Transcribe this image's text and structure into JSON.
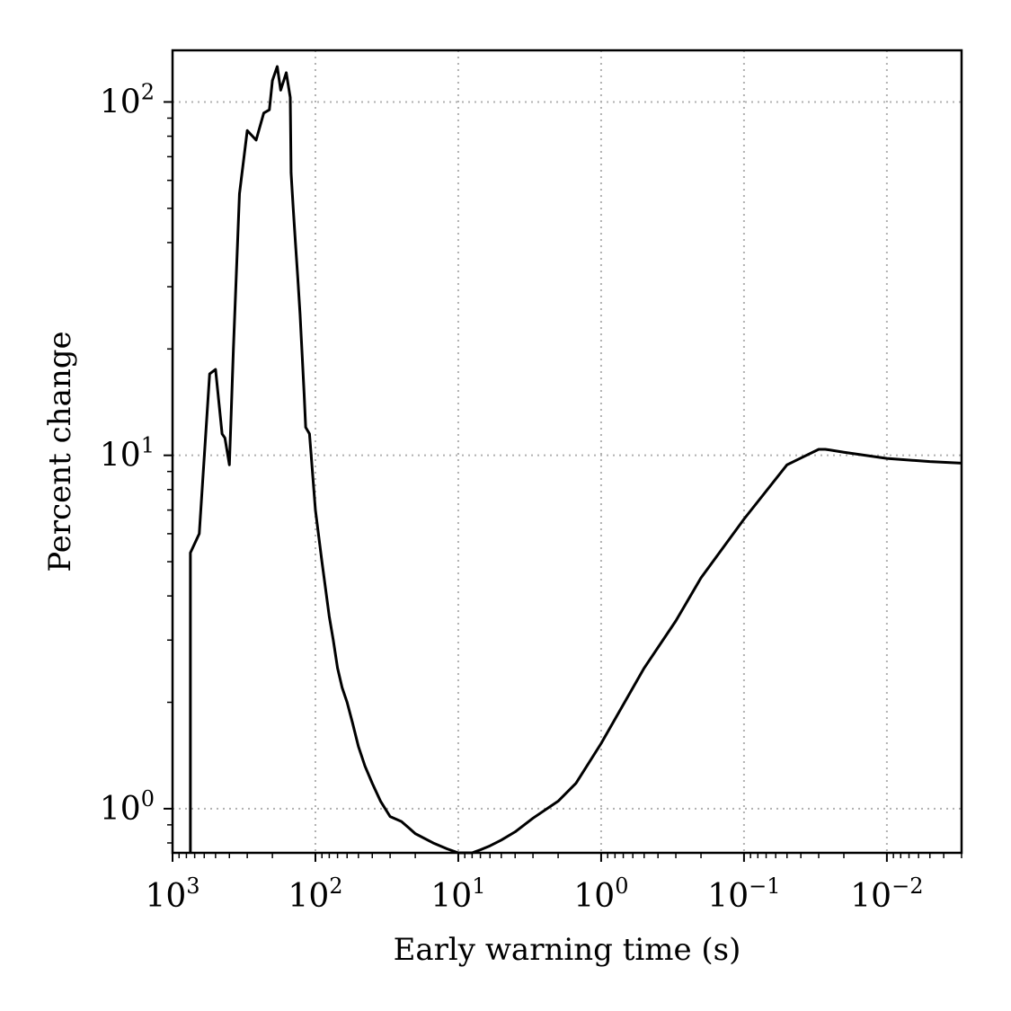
{
  "chart_data": {
    "type": "line",
    "title": "",
    "xlabel": "Early warning time (s)",
    "ylabel": "Percent change",
    "x_scale": "log",
    "y_scale": "log",
    "x_reversed": true,
    "xlim": [
      1000,
      0.003
    ],
    "ylim": [
      0.75,
      140
    ],
    "grid": true,
    "legend": "none",
    "line_color": "#000000",
    "grid_color": "#b0b0b0",
    "x_ticks": [
      {
        "value": 1000,
        "base": "10",
        "exp": "3"
      },
      {
        "value": 100,
        "base": "10",
        "exp": "2"
      },
      {
        "value": 10,
        "base": "10",
        "exp": "1"
      },
      {
        "value": 1,
        "base": "10",
        "exp": "0"
      },
      {
        "value": 0.1,
        "base": "10",
        "exp": "−1"
      },
      {
        "value": 0.01,
        "base": "10",
        "exp": "−2"
      }
    ],
    "y_ticks": [
      {
        "value": 1,
        "base": "10",
        "exp": "0"
      },
      {
        "value": 10,
        "base": "10",
        "exp": "1"
      },
      {
        "value": 100,
        "base": "10",
        "exp": "2"
      }
    ],
    "series": [
      {
        "x": [
          750,
          750,
          650,
          550,
          500,
          450,
          430,
          400,
          375,
          340,
          300,
          260,
          230,
          210,
          200,
          185,
          175,
          160,
          150,
          148,
          143,
          138,
          133,
          128,
          120,
          117,
          110,
          100,
          90,
          80,
          75,
          70,
          65,
          60,
          55,
          50,
          45,
          40,
          35,
          30,
          25,
          22,
          20,
          15,
          12,
          10,
          9,
          8,
          7,
          6,
          5,
          4,
          3,
          2,
          1.5,
          1,
          0.5,
          0.3,
          0.2,
          0.1,
          0.05,
          0.03,
          0.027,
          0.025,
          0.02,
          0.01,
          0.005,
          0.003
        ],
        "y": [
          0.75,
          5.3,
          6.0,
          17.0,
          17.5,
          11.5,
          11.2,
          9.4,
          20.0,
          55.0,
          83.0,
          78.0,
          93.0,
          95.0,
          115.0,
          126.0,
          108.0,
          121.0,
          103.0,
          63.0,
          50.0,
          40.0,
          32.0,
          25.0,
          15.0,
          12.0,
          11.5,
          7.0,
          5.0,
          3.5,
          3.0,
          2.5,
          2.2,
          2.0,
          1.75,
          1.5,
          1.32,
          1.18,
          1.05,
          0.95,
          0.92,
          0.88,
          0.85,
          0.8,
          0.77,
          0.75,
          0.745,
          0.75,
          0.765,
          0.785,
          0.815,
          0.86,
          0.94,
          1.05,
          1.18,
          1.53,
          2.5,
          3.4,
          4.5,
          6.6,
          9.4,
          10.4,
          10.4,
          10.35,
          10.2,
          9.8,
          9.6,
          9.5
        ]
      }
    ]
  }
}
